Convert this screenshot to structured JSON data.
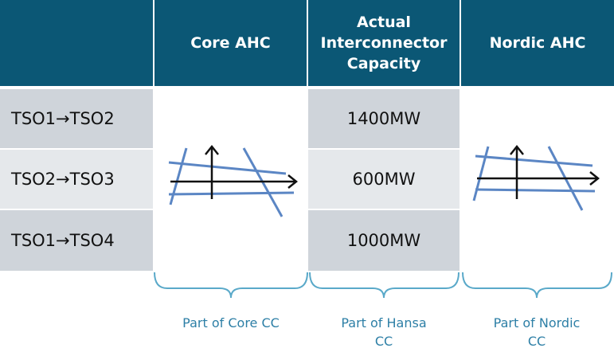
{
  "header": [
    "Core AHC",
    "Actual Interconnector Capacity",
    "Nordic AHC"
  ],
  "rows": [
    [
      "TSO1→TSO2",
      "1400MW"
    ],
    [
      "TSO2→TSO3",
      "600MW"
    ],
    [
      "TSO1→TSO4",
      "1000MW"
    ]
  ],
  "footer": [
    "Part of Core CC",
    "Part of Hansa CC",
    "Part of Nordic CC"
  ]
}
